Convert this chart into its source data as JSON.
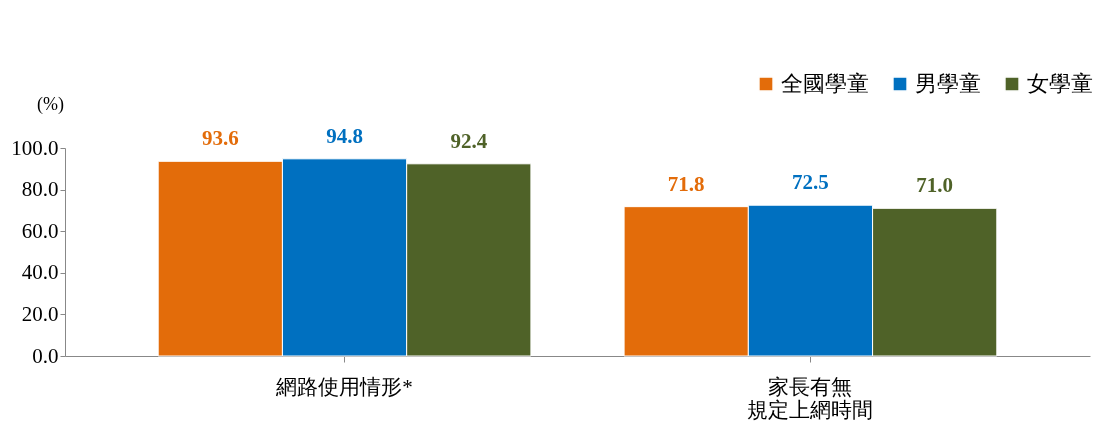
{
  "chart_data": {
    "type": "bar",
    "ylabel": "(%)",
    "categories": [
      "網路使用情形*",
      "家長有無規定上網時間"
    ],
    "series": [
      {
        "name": "全國學童",
        "color": "#e36c0a",
        "values": [
          93.6,
          71.8
        ],
        "value_labels": [
          "93.6",
          "71.8"
        ]
      },
      {
        "name": "男學童",
        "color": "#0070c0",
        "values": [
          94.8,
          72.5
        ],
        "value_labels": [
          "94.8",
          "72.5"
        ]
      },
      {
        "name": "女學童",
        "color": "#4f6228",
        "values": [
          92.4,
          71.0
        ],
        "value_labels": [
          "92.4",
          "71.0"
        ]
      }
    ],
    "ylim": [
      0,
      100
    ],
    "yticks": [
      {
        "value": 0,
        "label": "0.0"
      },
      {
        "value": 20,
        "label": "20.0"
      },
      {
        "value": 40,
        "label": "40.0"
      },
      {
        "value": 60,
        "label": "60.0"
      },
      {
        "value": 80,
        "label": "80.0"
      },
      {
        "value": 100,
        "label": "100.0"
      }
    ],
    "grid": false,
    "legend": "top right"
  }
}
